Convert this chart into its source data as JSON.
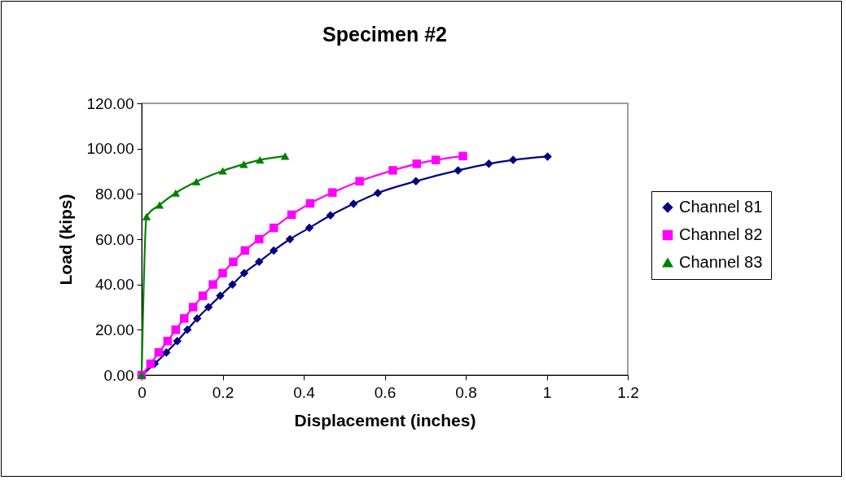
{
  "chart_data": {
    "type": "line",
    "title": "Specimen #2",
    "xlabel": "Displacement (inches)",
    "ylabel": "Load (kips)",
    "xlim": [
      0,
      1.2
    ],
    "xticks": [
      0,
      0.2,
      0.4,
      0.6,
      0.8,
      1,
      1.2
    ],
    "ylim": [
      0,
      120
    ],
    "yticks": [
      {
        "value": 0,
        "label": "0.00"
      },
      {
        "value": 20,
        "label": "20.00"
      },
      {
        "value": 40,
        "label": "40.00"
      },
      {
        "value": 60,
        "label": "60.00"
      },
      {
        "value": 80,
        "label": "80.00"
      },
      {
        "value": 100,
        "label": "100.00"
      },
      {
        "value": 120,
        "label": "120.00"
      }
    ],
    "grid": false,
    "legend": "right",
    "series": [
      {
        "name": "Channel 81",
        "color": "#000080",
        "marker": "diamond",
        "x": [
          0,
          0.032,
          0.061,
          0.088,
          0.113,
          0.137,
          0.165,
          0.194,
          0.224,
          0.253,
          0.29,
          0.326,
          0.366,
          0.414,
          0.466,
          0.523,
          0.583,
          0.677,
          0.781,
          0.857,
          0.917,
          1.002
        ],
        "values": [
          0,
          5,
          10,
          15,
          20,
          25,
          30,
          35,
          40,
          45,
          50,
          55,
          60,
          65,
          70.5,
          75.6,
          80.4,
          85.6,
          90.4,
          93.3,
          95,
          96.5
        ]
      },
      {
        "name": "Channel 82",
        "color": "#ff00ff",
        "marker": "square",
        "x": [
          0,
          0.022,
          0.042,
          0.064,
          0.084,
          0.105,
          0.127,
          0.151,
          0.176,
          0.2,
          0.226,
          0.255,
          0.29,
          0.326,
          0.37,
          0.416,
          0.471,
          0.538,
          0.62,
          0.679,
          0.726,
          0.793
        ],
        "values": [
          0,
          5,
          10,
          15,
          20,
          25,
          30,
          35,
          40,
          45,
          50,
          55,
          60,
          65,
          70.8,
          75.8,
          80.6,
          85.6,
          90.4,
          93.3,
          95,
          96.7
        ]
      },
      {
        "name": "Channel 83",
        "color": "#008000",
        "marker": "triangle",
        "x": [
          0,
          0.012,
          0.044,
          0.084,
          0.135,
          0.2,
          0.252,
          0.292,
          0.354
        ],
        "values": [
          0,
          70,
          75.1,
          80.4,
          85.4,
          90.2,
          93.1,
          95,
          96.7
        ]
      }
    ]
  }
}
